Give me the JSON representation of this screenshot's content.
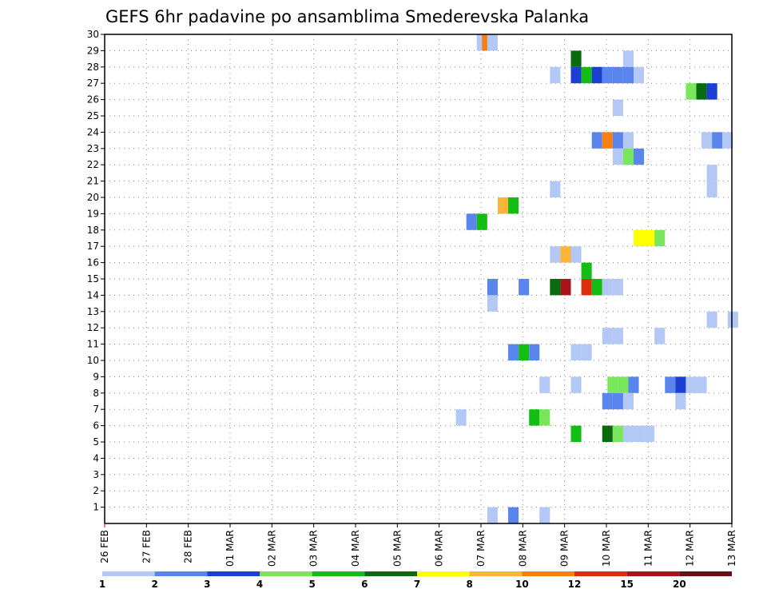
{
  "chart_data": {
    "type": "heatmap",
    "title": "GEFS 6hr padavine po ansamblima Smederevska Palanka",
    "x_tick_labels": [
      "26 FEB",
      "27 FEB",
      "28 FEB",
      "01 MAR",
      "02 MAR",
      "03 MAR",
      "04 MAR",
      "05 MAR",
      "06 MAR",
      "07 MAR",
      "08 MAR",
      "09 MAR",
      "10 MAR",
      "11 MAR",
      "12 MAR",
      "13 MAR"
    ],
    "x_unit": "6-hour step from 26 FEB 00z",
    "x_range": [
      0,
      60
    ],
    "y_tick_labels": [
      "1",
      "2",
      "3",
      "4",
      "5",
      "6",
      "7",
      "8",
      "9",
      "10",
      "11",
      "12",
      "13",
      "14",
      "15",
      "16",
      "17",
      "18",
      "19",
      "20",
      "21",
      "22",
      "23",
      "24",
      "25",
      "26",
      "27",
      "28",
      "29",
      "30"
    ],
    "y_range": [
      0,
      30
    ],
    "grid": true,
    "colorbar": {
      "position": "bottom",
      "tick_labels": [
        "1",
        "2",
        "3",
        "4",
        "5",
        "6",
        "7",
        "8",
        "10",
        "12",
        "15",
        "20"
      ],
      "colors": [
        "#b3c8f5",
        "#5a85ec",
        "#1a3fd1",
        "#7ae65c",
        "#13bd13",
        "#0a6a10",
        "#ffff00",
        "#fbb43a",
        "#f77f10",
        "#dc2e0c",
        "#a8141a",
        "#6b0f14"
      ]
    },
    "cells": [
      [
        35.6,
        29,
        1
      ],
      [
        36.1,
        29,
        9
      ],
      [
        36.6,
        29,
        1
      ],
      [
        44.6,
        28,
        6
      ],
      [
        49.6,
        28,
        1
      ],
      [
        42.6,
        27,
        1
      ],
      [
        44.6,
        27,
        3
      ],
      [
        45.6,
        27,
        5
      ],
      [
        46.6,
        27,
        3
      ],
      [
        47.6,
        27,
        2
      ],
      [
        48.6,
        27,
        2
      ],
      [
        49.6,
        27,
        2
      ],
      [
        50.6,
        27,
        1
      ],
      [
        55.6,
        26,
        4
      ],
      [
        56.6,
        26,
        6
      ],
      [
        57.6,
        26,
        3
      ],
      [
        48.6,
        25,
        1
      ],
      [
        46.6,
        23,
        2
      ],
      [
        47.6,
        23,
        9
      ],
      [
        48.6,
        23,
        2
      ],
      [
        49.6,
        23,
        1
      ],
      [
        57.1,
        23,
        1
      ],
      [
        58.1,
        23,
        2
      ],
      [
        59.1,
        23,
        1
      ],
      [
        48.6,
        22,
        1
      ],
      [
        49.6,
        22,
        4
      ],
      [
        50.6,
        22,
        2
      ],
      [
        57.6,
        21,
        1
      ],
      [
        57.6,
        20,
        1
      ],
      [
        42.6,
        20,
        1
      ],
      [
        37.6,
        19,
        8
      ],
      [
        38.6,
        19,
        5
      ],
      [
        34.6,
        18,
        2
      ],
      [
        35.6,
        18,
        5
      ],
      [
        50.6,
        17,
        7
      ],
      [
        51.6,
        17,
        7
      ],
      [
        52.6,
        17,
        4
      ],
      [
        42.6,
        16,
        1
      ],
      [
        43.6,
        16,
        8
      ],
      [
        44.6,
        16,
        1
      ],
      [
        45.6,
        15,
        5
      ],
      [
        36.6,
        14,
        2
      ],
      [
        39.6,
        14,
        2
      ],
      [
        42.6,
        14,
        6
      ],
      [
        43.6,
        14,
        11
      ],
      [
        45.6,
        14,
        10
      ],
      [
        46.6,
        14,
        5
      ],
      [
        47.6,
        14,
        1
      ],
      [
        48.6,
        14,
        1
      ],
      [
        36.6,
        13,
        1
      ],
      [
        57.6,
        12,
        1
      ],
      [
        59.6,
        12,
        1
      ],
      [
        47.6,
        11,
        1
      ],
      [
        48.6,
        11,
        1
      ],
      [
        52.6,
        11,
        1
      ],
      [
        38.6,
        10,
        2
      ],
      [
        39.6,
        10,
        5
      ],
      [
        40.6,
        10,
        2
      ],
      [
        44.6,
        10,
        1
      ],
      [
        45.6,
        10,
        1
      ],
      [
        41.6,
        8,
        1
      ],
      [
        44.6,
        8,
        1
      ],
      [
        48.1,
        8,
        4
      ],
      [
        49.1,
        8,
        4
      ],
      [
        50.1,
        8,
        2
      ],
      [
        53.6,
        8,
        2
      ],
      [
        54.6,
        8,
        3
      ],
      [
        55.6,
        8,
        1
      ],
      [
        56.6,
        8,
        1
      ],
      [
        47.6,
        7,
        2
      ],
      [
        48.6,
        7,
        2
      ],
      [
        49.6,
        7,
        1
      ],
      [
        54.6,
        7,
        1
      ],
      [
        33.6,
        6,
        1
      ],
      [
        40.6,
        6,
        5
      ],
      [
        41.6,
        6,
        4
      ],
      [
        44.6,
        5,
        5
      ],
      [
        47.6,
        5,
        6
      ],
      [
        48.6,
        5,
        4
      ],
      [
        49.6,
        5,
        1
      ],
      [
        50.6,
        5,
        1
      ],
      [
        51.6,
        5,
        1
      ],
      [
        36.6,
        0,
        1
      ],
      [
        38.6,
        0,
        2
      ],
      [
        41.6,
        0,
        1
      ]
    ]
  }
}
